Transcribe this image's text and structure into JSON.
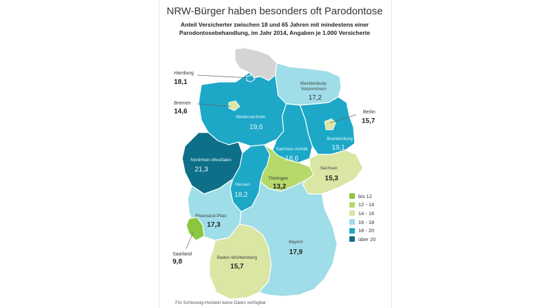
{
  "title": "NRW-Bürger haben besonders oft Parodontose",
  "subtitle_line1": "Anteil Versicherter zwischen 18 und 65 Jahren mit mindestens einer",
  "subtitle_line2": "Parodontosebehandlung, im Jahr 2014, Angaben je 1.000 Versicherte",
  "footnote": "Für Schleswig-Holstein keine Daten verfügbar",
  "colors": {
    "bis12": "#8cc63f",
    "12-14": "#b5d96b",
    "14-16": "#d9e6a4",
    "16-18": "#9fdde8",
    "18-20": "#1da8c8",
    "ueber20": "#0e6f88",
    "no_data": "#d4d4d4"
  },
  "legend": [
    {
      "label": "bis 12",
      "color": "#8cc63f"
    },
    {
      "label": "12 - 14",
      "color": "#b5d96b"
    },
    {
      "label": "14 - 16",
      "color": "#d9e6a4"
    },
    {
      "label": "16 - 18",
      "color": "#9fdde8"
    },
    {
      "label": "18 - 20",
      "color": "#1da8c8"
    },
    {
      "label": "über 20",
      "color": "#0e6f88"
    }
  ],
  "states": {
    "hamburg": {
      "name": "Hamburg",
      "value": "18,1"
    },
    "bremen": {
      "name": "Bremen",
      "value": "14,6"
    },
    "berlin": {
      "name": "Berlin",
      "value": "15,7"
    },
    "saarland": {
      "name": "Saarland",
      "value": "9,8"
    },
    "mv": {
      "name_line1": "Mecklenburg-",
      "name_line2": "Vorpommern",
      "value": "17,2"
    },
    "ns": {
      "name": "Niedersachsen",
      "value": "19,6"
    },
    "nrw": {
      "name": "Nordrhein-Westfalen",
      "value": "21,3"
    },
    "sa": {
      "name": "Sachsen-Anhalt",
      "value": "18,6"
    },
    "bb": {
      "name": "Brandenburg",
      "value": "19,1"
    },
    "th": {
      "name": "Thüringen",
      "value": "13,2"
    },
    "sn": {
      "name": "Sachsen",
      "value": "15,3"
    },
    "he": {
      "name": "Hessen",
      "value": "18,2"
    },
    "rp": {
      "name": "Rheinland-Pfalz",
      "value": "17,3"
    },
    "bw": {
      "name": "Baden-Württemberg",
      "value": "15,7"
    },
    "by": {
      "name": "Bayern",
      "value": "17,9"
    }
  }
}
